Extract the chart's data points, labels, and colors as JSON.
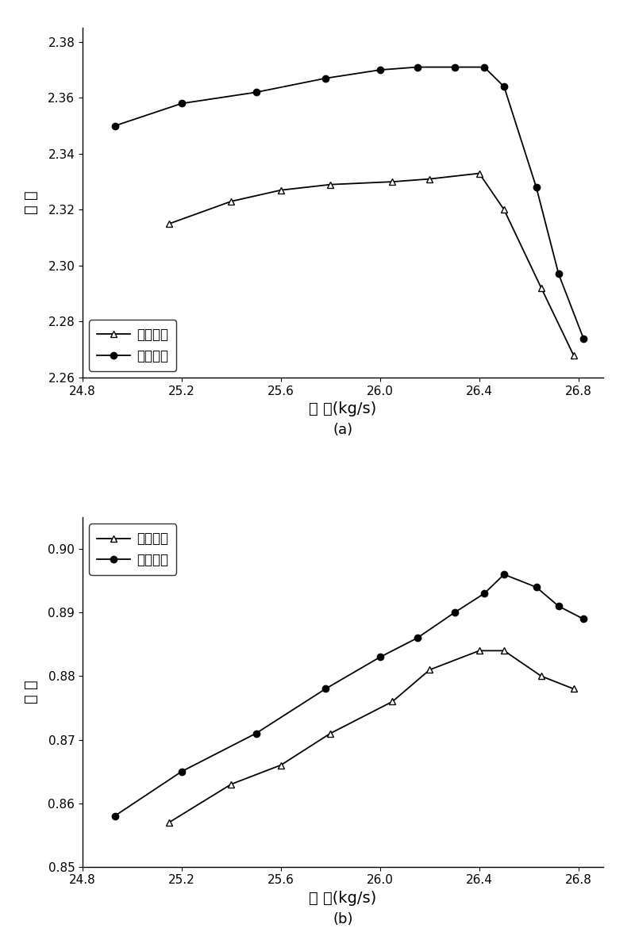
{
  "plot_a": {
    "title": "(a)",
    "ylabel": "压 比",
    "xlabel": "流 量(kg/s)",
    "xlim": [
      24.85,
      26.9
    ],
    "ylim": [
      2.26,
      2.385
    ],
    "xticks": [
      24.8,
      25.2,
      25.6,
      26.0,
      26.4,
      26.8
    ],
    "yticks": [
      2.26,
      2.28,
      2.3,
      2.32,
      2.34,
      2.36,
      2.38
    ],
    "series1_x": [
      25.15,
      25.4,
      25.6,
      25.8,
      26.05,
      26.2,
      26.4,
      26.5,
      26.65,
      26.78
    ],
    "series1_y": [
      2.315,
      2.323,
      2.327,
      2.329,
      2.33,
      2.331,
      2.333,
      2.32,
      2.292,
      2.268
    ],
    "series2_x": [
      24.93,
      25.2,
      25.5,
      25.78,
      26.0,
      26.15,
      26.3,
      26.42,
      26.5,
      26.63,
      26.72,
      26.82
    ],
    "series2_y": [
      2.35,
      2.358,
      2.362,
      2.367,
      2.37,
      2.371,
      2.371,
      2.371,
      2.364,
      2.328,
      2.297,
      2.274
    ],
    "legend1": "初始设计",
    "legend2": "环量优化"
  },
  "plot_b": {
    "title": "(b)",
    "ylabel": "效 率",
    "xlabel": "流 量(kg/s)",
    "xlim": [
      24.85,
      26.9
    ],
    "ylim": [
      0.85,
      0.905
    ],
    "xticks": [
      24.8,
      25.2,
      25.6,
      26.0,
      26.4,
      26.8
    ],
    "yticks": [
      0.85,
      0.86,
      0.87,
      0.88,
      0.89,
      0.9
    ],
    "series1_x": [
      25.15,
      25.4,
      25.6,
      25.8,
      26.05,
      26.2,
      26.4,
      26.5,
      26.65,
      26.78
    ],
    "series1_y": [
      0.857,
      0.863,
      0.866,
      0.871,
      0.876,
      0.881,
      0.884,
      0.884,
      0.88,
      0.878
    ],
    "series2_x": [
      24.93,
      25.2,
      25.5,
      25.78,
      26.0,
      26.15,
      26.3,
      26.42,
      26.5,
      26.63,
      26.72,
      26.82
    ],
    "series2_y": [
      0.858,
      0.865,
      0.871,
      0.878,
      0.883,
      0.886,
      0.89,
      0.893,
      0.896,
      0.894,
      0.891,
      0.889
    ],
    "legend1": "初始设计",
    "legend2": "环量优化"
  },
  "line_color": "#000000",
  "bg_color": "#ffffff",
  "marker_triangle": "^",
  "marker_circle": "o",
  "marker_size": 6,
  "line_width": 1.3,
  "font_size_label": 14,
  "font_size_tick": 11,
  "font_size_legend": 12,
  "font_size_caption": 13
}
